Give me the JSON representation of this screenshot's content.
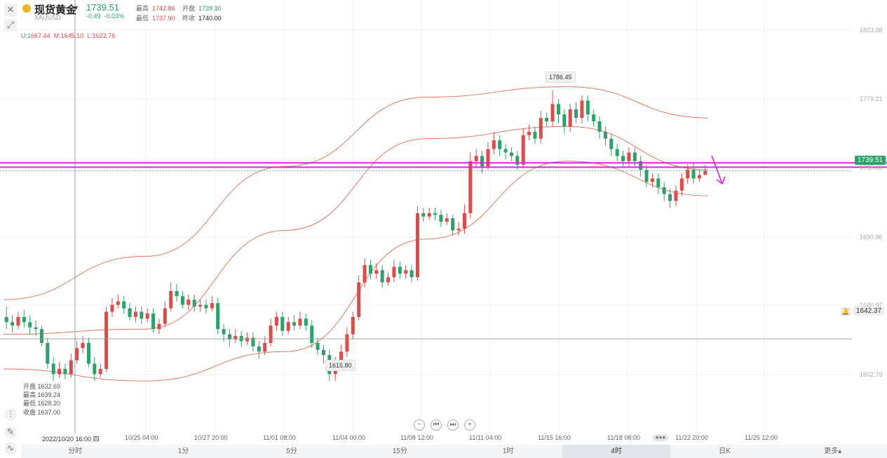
{
  "header": {
    "name": "现货黄金",
    "symbol": "XAUUSD",
    "price": "1739.51",
    "change": "-0.49",
    "change_pct": "-0.03%",
    "high_label": "最高",
    "high": "1742.86",
    "open_label": "开盘",
    "open": "1739.30",
    "low_label": "最低",
    "low": "1737.90",
    "prev_label": "昨收",
    "prev": "1740.00"
  },
  "boll": {
    "u": "U:1667.44",
    "m": "M:1645.10",
    "l": "L:1622.76"
  },
  "crosshair_ohlc": {
    "open": "开盘 1632.69",
    "high": "最高 1639.24",
    "low": "最低 1628.20",
    "close": "收盘 1637.00"
  },
  "y_axis": {
    "ticks": [
      "1823.08",
      "1779.21",
      "1735.03",
      "1690.86",
      "1646.97",
      "1602.79"
    ],
    "current_price_tag": "1739.51",
    "alert_price_tag": "1642.37"
  },
  "x_axis": {
    "crosshair_label": "2022/10/20 16:00 四",
    "labels": [
      "10/25 04:00",
      "10/27 20:00",
      "11/01 08:00",
      "11/04 00:00",
      "11/08 12:00",
      "11/11 04:00",
      "11/15 16:00",
      "11/18 08:00",
      "11/22 20:00",
      "11/25 12:00"
    ]
  },
  "annotations": {
    "peak": "1786.45",
    "trough": "1615.80"
  },
  "timeframes": [
    "分时",
    "1分",
    "5分",
    "15分",
    "1时",
    "4时",
    "日K",
    "更多▴"
  ],
  "active_timeframe": "4时",
  "colors": {
    "up": "#e24a4a",
    "down": "#2aa36b",
    "band": "#e07a5f",
    "hline": "#e020e0",
    "arrow": "#e020e0"
  },
  "chart_data": {
    "type": "candlestick",
    "series": [
      {
        "name": "K",
        "values": [
          [
            1655,
            1652,
            1661,
            1648
          ],
          [
            1652,
            1650,
            1656,
            1646
          ],
          [
            1650,
            1655,
            1658,
            1648
          ],
          [
            1655,
            1652,
            1659,
            1649
          ],
          [
            1652,
            1649,
            1656,
            1645
          ],
          [
            1649,
            1648,
            1653,
            1644
          ],
          [
            1648,
            1640,
            1650,
            1638
          ],
          [
            1640,
            1628,
            1643,
            1625
          ],
          [
            1628,
            1622,
            1632,
            1618
          ],
          [
            1622,
            1625,
            1629,
            1620
          ],
          [
            1625,
            1622,
            1628,
            1619
          ],
          [
            1622,
            1630,
            1634,
            1620
          ],
          [
            1630,
            1637,
            1641,
            1628
          ],
          [
            1637,
            1640,
            1644,
            1634
          ],
          [
            1640,
            1628,
            1643,
            1626
          ],
          [
            1628,
            1622,
            1632,
            1618
          ],
          [
            1622,
            1625,
            1628,
            1620
          ],
          [
            1625,
            1658,
            1661,
            1623
          ],
          [
            1658,
            1662,
            1666,
            1655
          ],
          [
            1662,
            1664,
            1668,
            1660
          ],
          [
            1664,
            1660,
            1667,
            1657
          ],
          [
            1660,
            1655,
            1663,
            1653
          ],
          [
            1655,
            1658,
            1661,
            1652
          ],
          [
            1658,
            1654,
            1661,
            1651
          ],
          [
            1654,
            1657,
            1660,
            1652
          ],
          [
            1657,
            1648,
            1660,
            1646
          ],
          [
            1648,
            1651,
            1654,
            1645
          ],
          [
            1651,
            1660,
            1664,
            1649
          ],
          [
            1660,
            1670,
            1675,
            1658
          ],
          [
            1670,
            1667,
            1674,
            1664
          ],
          [
            1667,
            1662,
            1670,
            1660
          ],
          [
            1662,
            1665,
            1668,
            1659
          ],
          [
            1665,
            1661,
            1668,
            1658
          ],
          [
            1661,
            1662,
            1665,
            1658
          ],
          [
            1662,
            1660,
            1665,
            1657
          ],
          [
            1660,
            1663,
            1667,
            1658
          ],
          [
            1663,
            1648,
            1666,
            1645
          ],
          [
            1648,
            1645,
            1651,
            1641
          ],
          [
            1645,
            1642,
            1648,
            1638
          ],
          [
            1642,
            1644,
            1648,
            1640
          ],
          [
            1644,
            1641,
            1647,
            1638
          ],
          [
            1641,
            1643,
            1646,
            1639
          ],
          [
            1643,
            1638,
            1646,
            1635
          ],
          [
            1638,
            1635,
            1641,
            1631
          ],
          [
            1635,
            1640,
            1644,
            1633
          ],
          [
            1640,
            1650,
            1654,
            1638
          ],
          [
            1650,
            1655,
            1658,
            1647
          ],
          [
            1655,
            1647,
            1658,
            1644
          ],
          [
            1647,
            1652,
            1655,
            1645
          ],
          [
            1652,
            1650,
            1656,
            1647
          ],
          [
            1650,
            1654,
            1658,
            1648
          ],
          [
            1654,
            1650,
            1657,
            1647
          ],
          [
            1650,
            1640,
            1653,
            1637
          ],
          [
            1640,
            1636,
            1643,
            1633
          ],
          [
            1636,
            1633,
            1639,
            1628
          ],
          [
            1633,
            1622,
            1636,
            1618
          ],
          [
            1622,
            1628,
            1632,
            1618
          ],
          [
            1628,
            1635,
            1639,
            1625
          ],
          [
            1635,
            1645,
            1649,
            1632
          ],
          [
            1645,
            1655,
            1658,
            1642
          ],
          [
            1655,
            1675,
            1679,
            1653
          ],
          [
            1675,
            1685,
            1689,
            1672
          ],
          [
            1685,
            1680,
            1688,
            1677
          ],
          [
            1680,
            1682,
            1686,
            1677
          ],
          [
            1682,
            1675,
            1685,
            1672
          ],
          [
            1675,
            1678,
            1681,
            1673
          ],
          [
            1678,
            1684,
            1688,
            1675
          ],
          [
            1684,
            1680,
            1687,
            1677
          ],
          [
            1680,
            1682,
            1685,
            1677
          ],
          [
            1682,
            1678,
            1685,
            1675
          ],
          [
            1678,
            1715,
            1719,
            1676
          ],
          [
            1715,
            1713,
            1718,
            1710
          ],
          [
            1713,
            1715,
            1718,
            1711
          ],
          [
            1715,
            1714,
            1718,
            1711
          ],
          [
            1714,
            1710,
            1717,
            1707
          ],
          [
            1710,
            1712,
            1715,
            1708
          ],
          [
            1712,
            1705,
            1714,
            1702
          ],
          [
            1705,
            1706,
            1710,
            1702
          ],
          [
            1706,
            1715,
            1720,
            1703
          ],
          [
            1715,
            1745,
            1750,
            1712
          ],
          [
            1745,
            1748,
            1752,
            1741
          ],
          [
            1748,
            1742,
            1751,
            1738
          ],
          [
            1742,
            1752,
            1756,
            1740
          ],
          [
            1752,
            1757,
            1762,
            1749
          ],
          [
            1757,
            1752,
            1760,
            1748
          ],
          [
            1752,
            1750,
            1755,
            1746
          ],
          [
            1750,
            1748,
            1753,
            1745
          ],
          [
            1748,
            1743,
            1751,
            1740
          ],
          [
            1743,
            1760,
            1764,
            1741
          ],
          [
            1760,
            1762,
            1766,
            1757
          ],
          [
            1762,
            1758,
            1765,
            1755
          ],
          [
            1758,
            1770,
            1774,
            1755
          ],
          [
            1770,
            1768,
            1773,
            1765
          ],
          [
            1768,
            1778,
            1786,
            1765
          ],
          [
            1778,
            1772,
            1781,
            1767
          ],
          [
            1772,
            1765,
            1775,
            1761
          ],
          [
            1765,
            1775,
            1778,
            1762
          ],
          [
            1775,
            1770,
            1779,
            1767
          ],
          [
            1770,
            1780,
            1783,
            1767
          ],
          [
            1780,
            1772,
            1783,
            1768
          ],
          [
            1772,
            1768,
            1775,
            1765
          ],
          [
            1768,
            1762,
            1771,
            1758
          ],
          [
            1762,
            1758,
            1765,
            1754
          ],
          [
            1758,
            1752,
            1761,
            1748
          ],
          [
            1752,
            1748,
            1755,
            1745
          ],
          [
            1748,
            1745,
            1751,
            1742
          ],
          [
            1745,
            1750,
            1753,
            1742
          ],
          [
            1750,
            1745,
            1753,
            1742
          ],
          [
            1745,
            1740,
            1748,
            1736
          ],
          [
            1740,
            1733,
            1743,
            1730
          ],
          [
            1733,
            1735,
            1738,
            1730
          ],
          [
            1735,
            1730,
            1738,
            1726
          ],
          [
            1730,
            1726,
            1733,
            1722
          ],
          [
            1726,
            1722,
            1729,
            1718
          ],
          [
            1722,
            1728,
            1731,
            1719
          ],
          [
            1728,
            1735,
            1738,
            1725
          ],
          [
            1735,
            1740,
            1743,
            1732
          ],
          [
            1740,
            1735,
            1744,
            1732
          ],
          [
            1735,
            1737,
            1740,
            1733
          ],
          [
            1737,
            1739.51,
            1742.86,
            1737.9
          ]
        ]
      }
    ],
    "bands": {
      "upper": [
        1665,
        1690,
        1742,
        1782,
        1788,
        1770
      ],
      "middle": [
        1645,
        1648,
        1705,
        1758,
        1765,
        1740
      ],
      "lower": [
        1625,
        1618,
        1635,
        1700,
        1745,
        1725
      ]
    },
    "horizontal_lines": [
      1744,
      1741.5,
      1642.37
    ],
    "ylim": [
      1595,
      1830
    ],
    "grid": true
  }
}
